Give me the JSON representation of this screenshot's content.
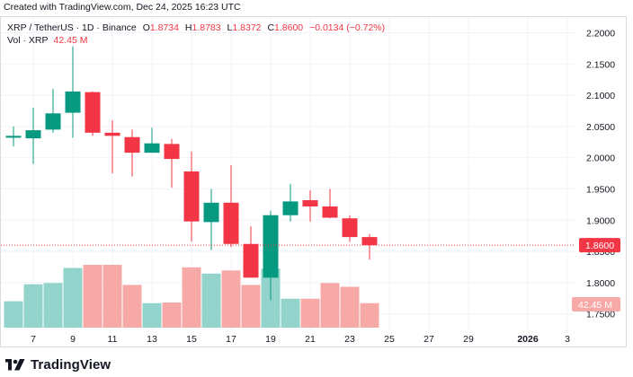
{
  "header": {
    "created_text": "Created with TradingView.com, Dec 24, 2025 16:23 UTC"
  },
  "legend": {
    "symbol": "XRP / TetherUS · 1D · Binance",
    "o_label": "O",
    "o_value": "1.8734",
    "h_label": "H",
    "h_value": "1.8783",
    "l_label": "L",
    "l_value": "1.8372",
    "c_label": "C",
    "c_value": "1.8600",
    "change": "−0.0134 (−0.72%)",
    "vol_label": "Vol · XRP",
    "vol_value": "42.45 M"
  },
  "price_tag": {
    "label": "1.8600"
  },
  "volume_tag": {
    "label": "42.45 M"
  },
  "footer": {
    "brand": "TradingView"
  },
  "colors": {
    "up": "#089981",
    "down": "#f23645",
    "vol_up": "#92d3cb",
    "vol_down": "#f7a9a7",
    "grid": "#f0f3fa",
    "axis_text": "#131722"
  },
  "chart_data": {
    "type": "candlestick",
    "title": "XRP / TetherUS · 1D · Binance",
    "ylim": [
      1.73,
      2.235
    ],
    "y_ticks": [
      "2.2000",
      "2.1500",
      "2.1000",
      "2.0500",
      "2.0000",
      "1.9500",
      "1.9000",
      "1.8500",
      "1.8000",
      "1.7500"
    ],
    "y_tick_values": [
      2.2,
      2.15,
      2.1,
      2.05,
      2.0,
      1.95,
      1.9,
      1.85,
      1.8,
      1.75
    ],
    "x_ticks": [
      "7",
      "9",
      "11",
      "13",
      "15",
      "17",
      "19",
      "21",
      "23",
      "25",
      "27",
      "29",
      "2026",
      "3"
    ],
    "x_tick_days": [
      1,
      3,
      5,
      7,
      9,
      11,
      13,
      15,
      17,
      19,
      21,
      23,
      26,
      28
    ],
    "last_price": 1.86,
    "candles": [
      {
        "date": "Dec 6",
        "day": 0,
        "o": 2.032,
        "h": 2.05,
        "l": 2.018,
        "c": 2.035
      },
      {
        "date": "Dec 7",
        "day": 1,
        "o": 2.031,
        "h": 2.08,
        "l": 1.99,
        "c": 2.044
      },
      {
        "date": "Dec 8",
        "day": 2,
        "o": 2.045,
        "h": 2.11,
        "l": 2.04,
        "c": 2.071
      },
      {
        "date": "Dec 9",
        "day": 3,
        "o": 2.072,
        "h": 2.178,
        "l": 2.032,
        "c": 2.106
      },
      {
        "date": "Dec 10",
        "day": 4,
        "o": 2.105,
        "h": 2.106,
        "l": 2.035,
        "c": 2.04
      },
      {
        "date": "Dec 11",
        "day": 5,
        "o": 2.04,
        "h": 2.06,
        "l": 1.975,
        "c": 2.035
      },
      {
        "date": "Dec 12",
        "day": 6,
        "o": 2.033,
        "h": 2.045,
        "l": 1.97,
        "c": 2.008
      },
      {
        "date": "Dec 13",
        "day": 7,
        "o": 2.008,
        "h": 2.048,
        "l": 2.008,
        "c": 2.023
      },
      {
        "date": "Dec 14",
        "day": 8,
        "o": 2.022,
        "h": 2.03,
        "l": 1.952,
        "c": 1.998
      },
      {
        "date": "Dec 15",
        "day": 9,
        "o": 1.978,
        "h": 2.01,
        "l": 1.866,
        "c": 1.898
      },
      {
        "date": "Dec 16",
        "day": 10,
        "o": 1.897,
        "h": 1.95,
        "l": 1.852,
        "c": 1.928
      },
      {
        "date": "Dec 17",
        "day": 11,
        "o": 1.928,
        "h": 1.988,
        "l": 1.857,
        "c": 1.862
      },
      {
        "date": "Dec 18",
        "day": 12,
        "o": 1.862,
        "h": 1.89,
        "l": 1.808,
        "c": 1.808
      },
      {
        "date": "Dec 19",
        "day": 13,
        "o": 1.808,
        "h": 1.915,
        "l": 1.772,
        "c": 1.908
      },
      {
        "date": "Dec 20",
        "day": 14,
        "o": 1.908,
        "h": 1.958,
        "l": 1.898,
        "c": 1.93
      },
      {
        "date": "Dec 21",
        "day": 15,
        "o": 1.932,
        "h": 1.948,
        "l": 1.898,
        "c": 1.922
      },
      {
        "date": "Dec 22",
        "day": 16,
        "o": 1.922,
        "h": 1.95,
        "l": 1.903,
        "c": 1.904
      },
      {
        "date": "Dec 23",
        "day": 17,
        "o": 1.903,
        "h": 1.908,
        "l": 1.865,
        "c": 1.873
      },
      {
        "date": "Dec 24",
        "day": 18,
        "o": 1.873,
        "h": 1.878,
        "l": 1.837,
        "c": 1.86
      }
    ],
    "volumes": [
      42,
      69,
      71,
      95,
      100,
      100,
      68,
      39,
      40,
      96,
      86,
      91,
      68,
      94,
      46,
      46,
      71,
      65,
      39
    ]
  }
}
